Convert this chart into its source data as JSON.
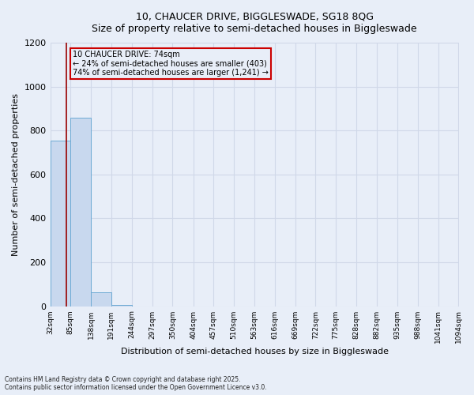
{
  "title_line1": "10, CHAUCER DRIVE, BIGGLESWADE, SG18 8QG",
  "title_line2": "Size of property relative to semi-detached houses in Biggleswade",
  "xlabel": "Distribution of semi-detached houses by size in Biggleswade",
  "ylabel": "Number of semi-detached properties",
  "bin_edges": [
    32,
    85,
    138,
    191,
    244,
    297,
    350,
    404,
    457,
    510,
    563,
    616,
    669,
    722,
    775,
    828,
    882,
    935,
    988,
    1041,
    1094
  ],
  "bar_heights": [
    755,
    860,
    65,
    5,
    0,
    0,
    0,
    0,
    0,
    0,
    0,
    0,
    0,
    0,
    0,
    0,
    0,
    0,
    0,
    0
  ],
  "bar_color": "#c8d8ee",
  "bar_edge_color": "#6daad4",
  "property_size": 74,
  "vline_color": "#990000",
  "annotation_text": "10 CHAUCER DRIVE: 74sqm\n← 24% of semi-detached houses are smaller (403)\n74% of semi-detached houses are larger (1,241) →",
  "annotation_box_color": "#cc0000",
  "ylim": [
    0,
    1200
  ],
  "yticks": [
    0,
    200,
    400,
    600,
    800,
    1000,
    1200
  ],
  "footer_text": "Contains HM Land Registry data © Crown copyright and database right 2025.\nContains public sector information licensed under the Open Government Licence v3.0.",
  "bg_color": "#e8eef8",
  "grid_color": "#d0d8e8"
}
